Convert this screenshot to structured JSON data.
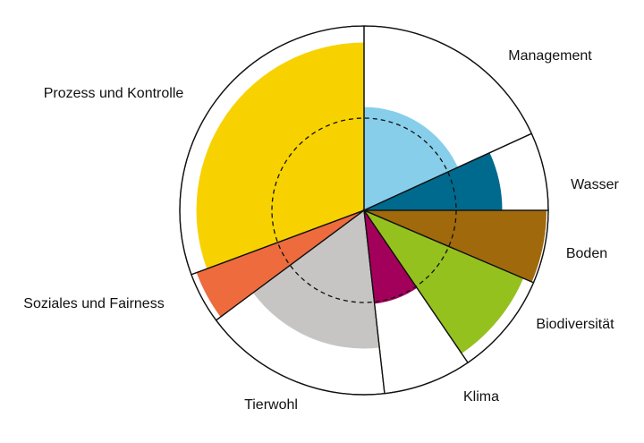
{
  "chart_data": {
    "type": "polar-area",
    "title": "",
    "radial_max": 1.0,
    "reference_circle": {
      "value": 0.5,
      "style": "dashed"
    },
    "series": [
      {
        "label": "Management",
        "value": 0.56,
        "color": "#87ceeb",
        "sector_start_deg": 0,
        "sector_end_deg": 65.4
      },
      {
        "label": "Wasser",
        "value": 0.75,
        "color": "#006a8e",
        "sector_start_deg": 65.4,
        "sector_end_deg": 90
      },
      {
        "label": "Boden",
        "value": 0.99,
        "color": "#a0690c",
        "sector_start_deg": 90,
        "sector_end_deg": 113.1
      },
      {
        "label": "Biodiversität",
        "value": 0.94,
        "color": "#95c11f",
        "sector_start_deg": 113.1,
        "sector_end_deg": 145.7
      },
      {
        "label": "Klima",
        "value": 0.51,
        "color": "#a3005c",
        "sector_start_deg": 145.7,
        "sector_end_deg": 173.6
      },
      {
        "label": "Tierwohl",
        "value": 0.75,
        "color": "#c6c5c4",
        "sector_start_deg": 173.6,
        "sector_end_deg": 233.4
      },
      {
        "label": "Soziales und Fairness",
        "value": 0.97,
        "color": "#ed6b3d",
        "sector_start_deg": 233.4,
        "sector_end_deg": 249.6
      },
      {
        "label": "Prozess und Kontrolle",
        "value": 0.91,
        "color": "#f7d200",
        "sector_start_deg": 249.6,
        "sector_end_deg": 360
      }
    ]
  }
}
